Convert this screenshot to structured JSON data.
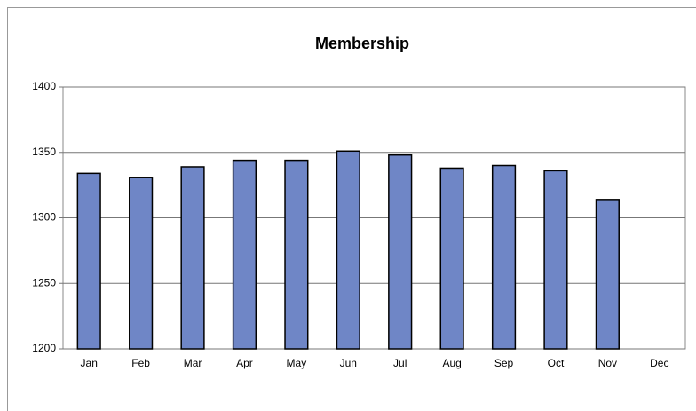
{
  "chart_data": {
    "type": "bar",
    "title": "Membership",
    "categories": [
      "Jan",
      "Feb",
      "Mar",
      "Apr",
      "May",
      "Jun",
      "Jul",
      "Aug",
      "Sep",
      "Oct",
      "Nov",
      "Dec"
    ],
    "values": [
      1334,
      1331,
      1339,
      1344,
      1344,
      1351,
      1348,
      1338,
      1340,
      1336,
      1314,
      null
    ],
    "color": "#6f86c6",
    "ylim": [
      1200,
      1400
    ],
    "yticks": [
      1200,
      1250,
      1300,
      1350,
      1400
    ],
    "grid": true
  }
}
